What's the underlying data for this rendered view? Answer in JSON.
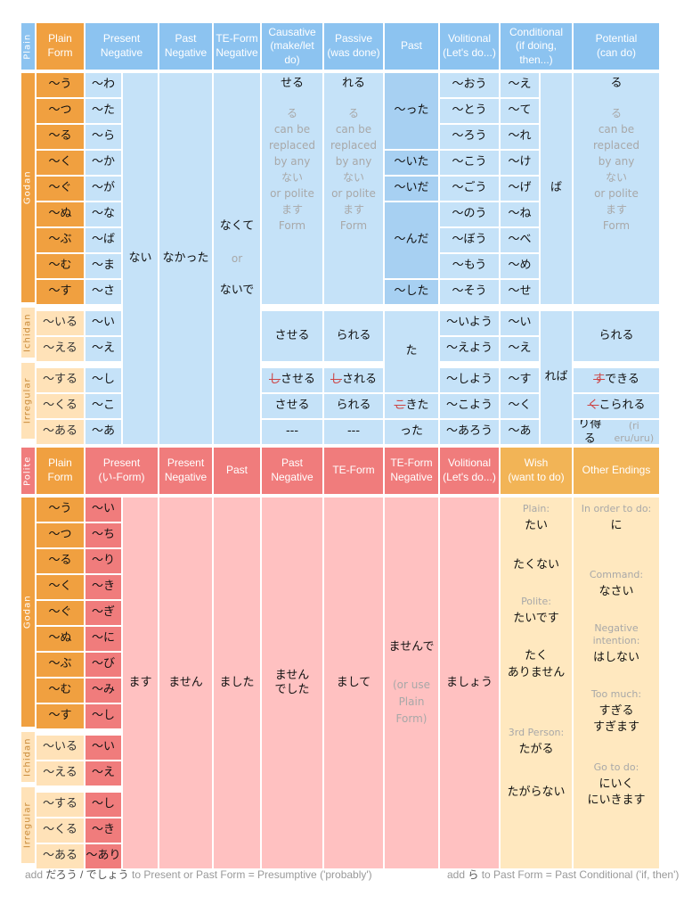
{
  "colors": {
    "blue_header": "#8cc3f0",
    "orange_header": "#f0a040",
    "light_blue": "#c5e2f8",
    "mid_blue": "#a7d0f2",
    "light_orange": "#ffe2b8",
    "red_header": "#f07c7c",
    "light_red": "#ffc1c1",
    "mid_red": "#ffb0b0",
    "gold_header": "#f2b456",
    "cream": "#ffe8bf"
  },
  "plain": {
    "side_label": "Plain",
    "headers": {
      "plain_form": [
        "Plain",
        "Form"
      ],
      "present_negative": [
        "Present",
        "Negative"
      ],
      "past_negative": [
        "Past",
        "Negative"
      ],
      "te_negative": [
        "TE-Form",
        "Negative"
      ],
      "causative": [
        "Causative",
        "(make/let do)"
      ],
      "passive": [
        "Passive",
        "(was done)"
      ],
      "past": [
        "Past"
      ],
      "volitional": [
        "Volitional",
        "(Let's do...)"
      ],
      "conditional": [
        "Conditional",
        "(if doing, then...)"
      ],
      "potential": [
        "Potential",
        "(can do)"
      ]
    },
    "group_labels": {
      "godan": "Godan",
      "ichidan": "Ichidan",
      "irregular": "Irregular"
    },
    "endings": [
      "～う",
      "～つ",
      "～る",
      "～く",
      "～ぐ",
      "～ぬ",
      "～ぶ",
      "～む",
      "～す",
      "～いる",
      "～える",
      "～する",
      "～くる",
      "～ある"
    ],
    "stems": [
      "～わ",
      "～た",
      "～ら",
      "～か",
      "～が",
      "～な",
      "～ば",
      "～ま",
      "～さ",
      "～い",
      "～え",
      "～し",
      "～こ",
      "～あ"
    ],
    "nai": "ない",
    "nakatta": "なかった",
    "te_negative": {
      "line1": "なくて",
      "or": "or",
      "line2": "ないで"
    },
    "causative": {
      "godan_head": "せる",
      "note": [
        "る",
        "can be",
        "replaced",
        "by any",
        "ない",
        "or polite",
        "ます",
        "Form"
      ],
      "ichidan": "させる",
      "suru": "させる",
      "kuru": "させる",
      "aru": "---"
    },
    "passive": {
      "godan_head": "れる",
      "note": [
        "る",
        "can be",
        "replaced",
        "by any",
        "ない",
        "or polite",
        "ます",
        "Form"
      ],
      "ichidan": "られる",
      "suru": "される",
      "kuru": "られる",
      "aru": "---"
    },
    "past": {
      "tta": "～った",
      "ita": "～いた",
      "ida": "～いだ",
      "nda": "～んだ",
      "shita": "～した",
      "ta": "た",
      "kita": "きた",
      "atta": "った"
    },
    "volitional": [
      "～おう",
      "～とう",
      "～ろう",
      "～こう",
      "～ごう",
      "～のう",
      "～ぼう",
      "～もう",
      "～そう",
      "～いよう",
      "～えよう",
      "～しよう",
      "～こよう",
      "～あろう"
    ],
    "conditional": [
      "～え",
      "～て",
      "～れ",
      "～け",
      "～げ",
      "～ね",
      "～べ",
      "～め",
      "～せ",
      "～い",
      "～え",
      "～す",
      "～く",
      "～あ"
    ],
    "ba": "ば",
    "reba": "れば",
    "potential": {
      "godan_head": "る",
      "note": [
        "る",
        "can be",
        "replaced",
        "by any",
        "ない",
        "or polite",
        "ます",
        "Form"
      ],
      "ichidan": "られる",
      "suru": "できる",
      "kuru": "こられる",
      "aru": "り得る",
      "aru_note": "(ri eru/uru)"
    }
  },
  "polite": {
    "side_label": "Polite",
    "headers": {
      "plain_form": [
        "Plain",
        "Form"
      ],
      "present": [
        "Present",
        "(い-Form)"
      ],
      "present_negative": [
        "Present",
        "Negative"
      ],
      "past": [
        "Past"
      ],
      "past_negative": [
        "Past",
        "Negative"
      ],
      "te": [
        "TE-Form"
      ],
      "te_negative": [
        "TE-Form",
        "Negative"
      ],
      "volitional": [
        "Volitional",
        "(Let's do...)"
      ],
      "wish": [
        "Wish",
        "(want to do)"
      ],
      "other": [
        "Other Endings"
      ]
    },
    "endings": [
      "～う",
      "～つ",
      "～る",
      "～く",
      "～ぐ",
      "～ぬ",
      "～ぶ",
      "～む",
      "～す",
      "～いる",
      "～える",
      "～する",
      "～くる",
      "～ある"
    ],
    "stems": [
      "～い",
      "～ち",
      "～り",
      "～き",
      "～ぎ",
      "～に",
      "～び",
      "～み",
      "～し",
      "～い",
      "～え",
      "～し",
      "～き",
      "～あり"
    ],
    "masu": "ます",
    "masen": "ません",
    "mashita": "ました",
    "masen_deshita": [
      "ません",
      "でした"
    ],
    "mashite": "まして",
    "masende": "ませんで",
    "masende_note": [
      "(or use",
      "Plain",
      "Form)"
    ],
    "mashou": "ましょう",
    "wish": {
      "plain_label": "Plain:",
      "tai": "たい",
      "takunai": "たくない",
      "polite_label": "Polite:",
      "taidesu": "たいです",
      "takuarimasen": [
        "たく",
        "ありません"
      ],
      "third_label": "3rd Person:",
      "tagaru": "たがる",
      "tagaranai": "たがらない"
    },
    "other": {
      "order_label": "In order to do:",
      "ni": "に",
      "command_label": "Command:",
      "nasai": "なさい",
      "negint_label": "Negative intention:",
      "hashinai": "はしない",
      "toomuch_label": "Too much:",
      "sugiru": "すぎる",
      "sugimasu": "すぎます",
      "goto_label": "Go to do:",
      "niiku": "にいく",
      "niikimasu": "にいきます"
    }
  },
  "footer": {
    "left_pre": "add ",
    "left_jp": "だろう / でしょう",
    "left_post": " to Present or Past Form = Presumptive ('probably')",
    "right_pre": "add ",
    "right_jp": "ら",
    "right_post": " to Past Form = Past Conditional ('if, then')"
  }
}
